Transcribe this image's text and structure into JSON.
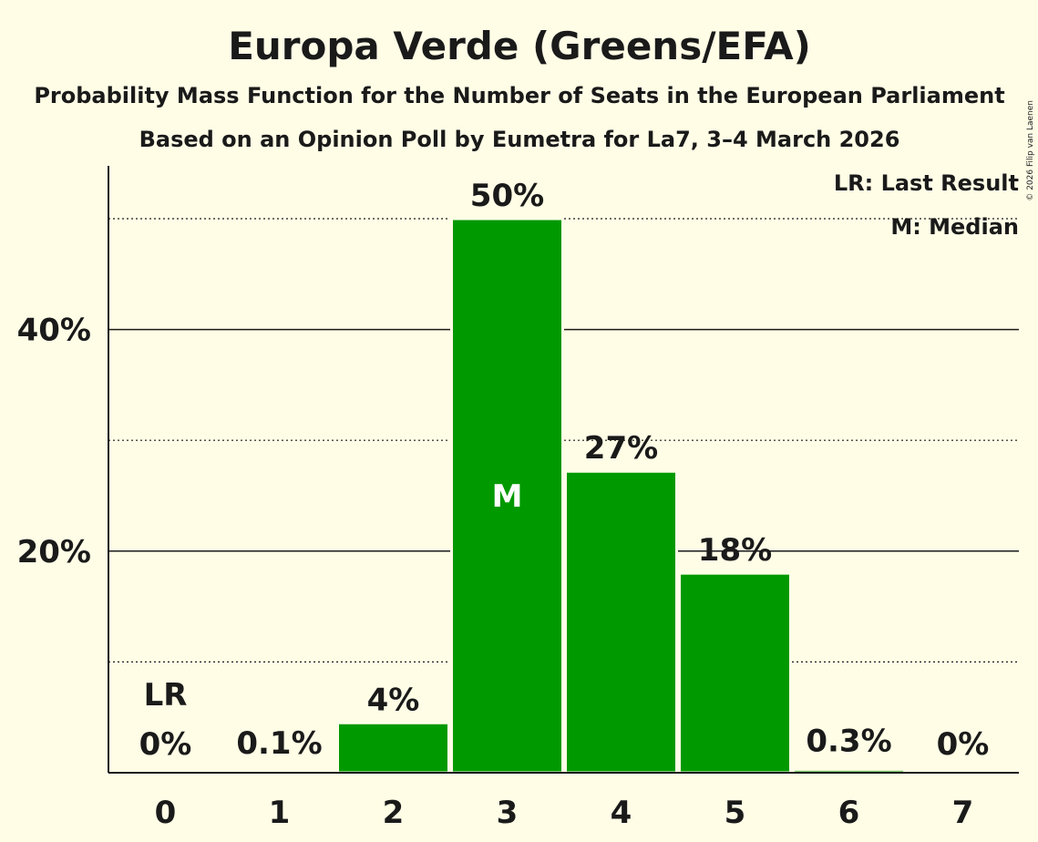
{
  "chart_data": {
    "type": "bar",
    "title": "Europa Verde (Greens/EFA)",
    "subtitle": "Probability Mass Function for the Number of Seats in the European Parliament",
    "subtitle2": "Based on an Opinion Poll by Eumetra for La7, 3–4 March 2026",
    "categories": [
      "0",
      "1",
      "2",
      "3",
      "4",
      "5",
      "6",
      "7"
    ],
    "values": [
      0,
      0.1,
      4.5,
      50,
      27.2,
      18,
      0.3,
      0
    ],
    "value_labels": [
      "0%",
      "0.1%",
      "4%",
      "50%",
      "27%",
      "18%",
      "0.3%",
      "0%"
    ],
    "ylim": [
      0,
      55
    ],
    "yticks": [
      20,
      40
    ],
    "ytick_labels": [
      "20%",
      "40%"
    ],
    "minor_gridlines": [
      10,
      30,
      50
    ],
    "bar_color": "#009900",
    "last_result_index": 0,
    "last_result_label": "LR",
    "median_index": 3,
    "median_label": "M",
    "legend": [
      "LR: Last Result",
      "M: Median"
    ],
    "legend_position": "top-right",
    "copyright": "© 2026 Filip van Laenen"
  }
}
